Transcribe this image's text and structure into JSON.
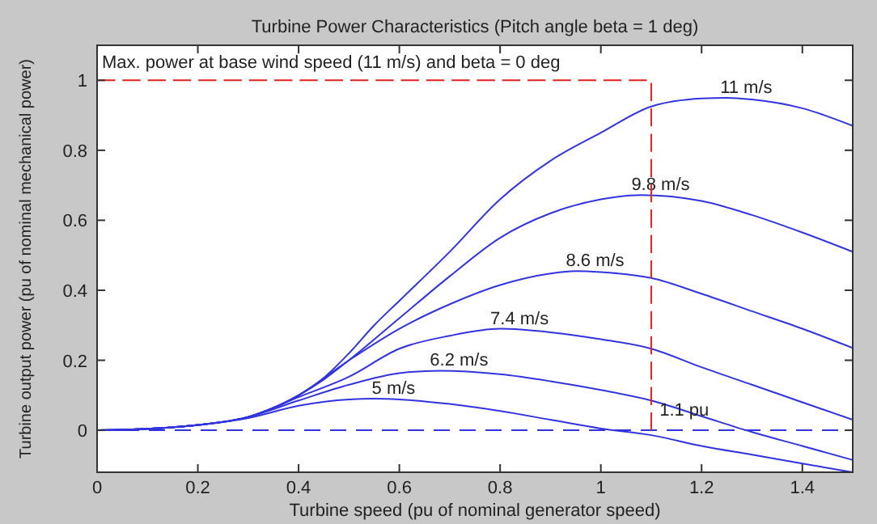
{
  "chart_data": {
    "type": "line",
    "title": "Turbine Power Characteristics (Pitch angle beta = 1 deg)",
    "xlabel": "Turbine speed (pu of nominal generator speed)",
    "ylabel": "Turbine output power (pu of nominal mechanical power)",
    "xlim": [
      0,
      1.5
    ],
    "ylim": [
      -0.12,
      1.1
    ],
    "xticks": [
      0,
      0.2,
      0.4,
      0.6,
      0.8,
      1,
      1.2,
      1.4
    ],
    "yticks": [
      0,
      0.2,
      0.4,
      0.6,
      0.8,
      1
    ],
    "grid": false,
    "marker": "none",
    "line_style": "solid",
    "series": [
      {
        "name": "11 m/s",
        "color": "#3333dd",
        "x": [
          0,
          0.1,
          0.2,
          0.3,
          0.4,
          0.45,
          0.5,
          0.55,
          0.6,
          0.7,
          0.8,
          0.9,
          1,
          1.1,
          1.2,
          1.25,
          1.3,
          1.4,
          1.5
        ],
        "values": [
          0,
          0.004,
          0.015,
          0.038,
          0.1,
          0.15,
          0.22,
          0.3,
          0.37,
          0.51,
          0.66,
          0.77,
          0.85,
          0.925,
          0.948,
          0.95,
          0.945,
          0.92,
          0.87
        ]
      },
      {
        "name": "9.8 m/s",
        "color": "#3333dd",
        "x": [
          0,
          0.1,
          0.2,
          0.3,
          0.4,
          0.45,
          0.5,
          0.6,
          0.7,
          0.8,
          0.9,
          1,
          1.08,
          1.2,
          1.3,
          1.4,
          1.5
        ],
        "values": [
          0,
          0.004,
          0.015,
          0.038,
          0.1,
          0.145,
          0.2,
          0.32,
          0.44,
          0.55,
          0.62,
          0.66,
          0.672,
          0.655,
          0.615,
          0.565,
          0.51
        ]
      },
      {
        "name": "8.6 m/s",
        "color": "#3333dd",
        "x": [
          0,
          0.1,
          0.2,
          0.3,
          0.4,
          0.5,
          0.6,
          0.7,
          0.8,
          0.9,
          0.95,
          1,
          1.1,
          1.2,
          1.3,
          1.4,
          1.5
        ],
        "values": [
          0,
          0.004,
          0.015,
          0.038,
          0.1,
          0.2,
          0.29,
          0.36,
          0.415,
          0.448,
          0.455,
          0.452,
          0.435,
          0.39,
          0.34,
          0.29,
          0.235
        ]
      },
      {
        "name": "7.4 m/s",
        "color": "#3333dd",
        "x": [
          0,
          0.1,
          0.2,
          0.3,
          0.4,
          0.5,
          0.6,
          0.7,
          0.8,
          0.9,
          1,
          1.1,
          1.2,
          1.3,
          1.4,
          1.5
        ],
        "values": [
          0,
          0.004,
          0.015,
          0.038,
          0.095,
          0.153,
          0.233,
          0.27,
          0.29,
          0.28,
          0.26,
          0.233,
          0.18,
          0.13,
          0.08,
          0.03
        ]
      },
      {
        "name": "6.2 m/s",
        "color": "#3333dd",
        "x": [
          0,
          0.1,
          0.2,
          0.3,
          0.4,
          0.5,
          0.6,
          0.68,
          0.8,
          0.9,
          1,
          1.1,
          1.2,
          1.3,
          1.4,
          1.5
        ],
        "values": [
          0,
          0.004,
          0.015,
          0.038,
          0.085,
          0.13,
          0.163,
          0.17,
          0.16,
          0.14,
          0.115,
          0.085,
          0.04,
          -0.005,
          -0.045,
          -0.085
        ]
      },
      {
        "name": "5 m/s",
        "color": "#3333dd",
        "x": [
          0,
          0.1,
          0.2,
          0.3,
          0.4,
          0.5,
          0.55,
          0.6,
          0.7,
          0.8,
          0.9,
          1,
          1.1,
          1.2,
          1.3,
          1.4,
          1.5
        ],
        "values": [
          0,
          0.004,
          0.015,
          0.035,
          0.07,
          0.088,
          0.09,
          0.088,
          0.075,
          0.055,
          0.03,
          0.005,
          -0.014,
          -0.045,
          -0.07,
          -0.095,
          -0.12
        ]
      },
      {
        "color": "#dd2222",
        "line_style": "dashed",
        "x": [
          0,
          1.1,
          1.1
        ],
        "values": [
          1,
          1,
          0
        ]
      }
    ],
    "ref_lines": [
      {
        "axis": "y",
        "value": 0,
        "color": "#3333dd",
        "line_style": "dashed"
      }
    ],
    "annotations": [
      "Max. power at base wind speed (11 m/s) and beta = 0 deg",
      {
        "text": "1.1 pu",
        "x": 1.11,
        "y": 0.06
      }
    ]
  }
}
